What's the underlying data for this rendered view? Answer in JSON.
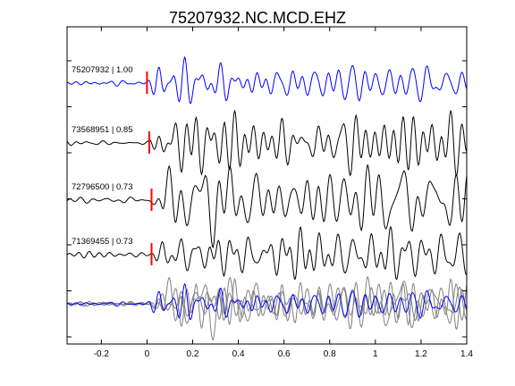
{
  "chart_data": {
    "type": "line",
    "title": "75207932.NC.MCD.EHZ",
    "xlabel": "",
    "ylabel": "",
    "xlim": [
      -0.35,
      1.4
    ],
    "x_ticks": [
      -0.2,
      0,
      0.2,
      0.4,
      0.6,
      0.8,
      1.0,
      1.2,
      1.4
    ],
    "x_tick_labels": [
      "-0.2",
      "0",
      "0.2",
      "0.4",
      "0.6",
      "0.8",
      "1",
      "1.2",
      "1.4"
    ],
    "grid": false,
    "legend": "none",
    "colors": {
      "reference": "#0000ff",
      "matched": "#000000",
      "stack_matched": "#808080",
      "pick": "#ff0000",
      "axes": "#000000"
    },
    "traces": [
      {
        "name": "75207932 | 1.00",
        "event_id": "75207932",
        "correlation": 1.0,
        "pick_time": 0.0,
        "color": "#0000ff"
      },
      {
        "name": "73568951 | 0.85",
        "event_id": "73568951",
        "correlation": 0.85,
        "pick_time": 0.01,
        "color": "#000000"
      },
      {
        "name": "72796500 | 0.73",
        "event_id": "72796500",
        "correlation": 0.73,
        "pick_time": 0.02,
        "color": "#000000"
      },
      {
        "name": "71369455 | 0.73",
        "event_id": "71369455",
        "correlation": 0.73,
        "pick_time": 0.02,
        "color": "#000000"
      }
    ],
    "stack": {
      "description_visible": false
    }
  }
}
